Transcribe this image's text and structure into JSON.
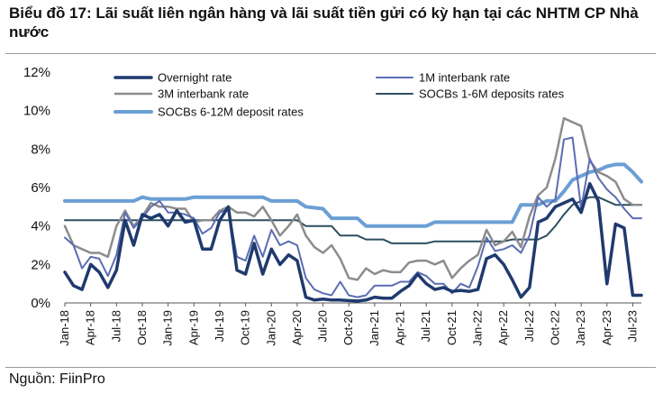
{
  "title": "Biểu đồ 17: Lãi suất liên ngân hàng và lãi suất tiền gửi có kỳ hạn tại các NHTM CP Nhà nước",
  "source": "Nguồn: FiinPro",
  "chart_data": {
    "type": "line",
    "title": "Biểu đồ 17: Lãi suất liên ngân hàng và lãi suất tiền gửi có kỳ hạn tại các NHTM CP Nhà nước",
    "xlabel": "",
    "ylabel": "",
    "ylim": [
      0,
      12
    ],
    "yticks": [
      "0%",
      "2%",
      "4%",
      "6%",
      "8%",
      "10%",
      "12%"
    ],
    "x_start": "Jan-18",
    "x_end": "Jul-23",
    "xticks": [
      "Jan-18",
      "Apr-18",
      "Jul-18",
      "Oct-18",
      "Jan-19",
      "Apr-19",
      "Jul-19",
      "Oct-19",
      "Jan-20",
      "Apr-20",
      "Jul-20",
      "Oct-20",
      "Jan-21",
      "Apr-21",
      "Jul-21",
      "Oct-21",
      "Jan-22",
      "Apr-22",
      "Jul-22",
      "Oct-22",
      "Jan-23",
      "Apr-23",
      "Jul-23"
    ],
    "grid": false,
    "legend_position": "top",
    "series": [
      {
        "name": "Overnight rate",
        "color": "#1f3a6e",
        "width": 3.5,
        "values": [
          [
            "Jan-18",
            1.6
          ],
          [
            "Feb-18",
            0.9
          ],
          [
            "Mar-18",
            0.7
          ],
          [
            "Apr-18",
            2.0
          ],
          [
            "May-18",
            1.6
          ],
          [
            "Jun-18",
            0.8
          ],
          [
            "Jul-18",
            1.7
          ],
          [
            "Aug-18",
            4.3
          ],
          [
            "Sep-18",
            3.0
          ],
          [
            "Oct-18",
            4.6
          ],
          [
            "Nov-18",
            4.4
          ],
          [
            "Dec-18",
            4.6
          ],
          [
            "Jan-19",
            4.0
          ],
          [
            "Feb-19",
            4.8
          ],
          [
            "Mar-19",
            4.2
          ],
          [
            "Apr-19",
            4.3
          ],
          [
            "May-19",
            2.8
          ],
          [
            "Jun-19",
            2.8
          ],
          [
            "Jul-19",
            4.3
          ],
          [
            "Aug-19",
            5.0
          ],
          [
            "Sep-19",
            1.7
          ],
          [
            "Oct-19",
            1.5
          ],
          [
            "Nov-19",
            3.1
          ],
          [
            "Dec-19",
            1.5
          ],
          [
            "Jan-20",
            2.8
          ],
          [
            "Feb-20",
            2.0
          ],
          [
            "Mar-20",
            2.5
          ],
          [
            "Apr-20",
            2.2
          ],
          [
            "May-20",
            0.3
          ],
          [
            "Jun-20",
            0.15
          ],
          [
            "Jul-20",
            0.2
          ],
          [
            "Aug-20",
            0.15
          ],
          [
            "Sep-20",
            0.15
          ],
          [
            "Oct-20",
            0.12
          ],
          [
            "Nov-20",
            0.1
          ],
          [
            "Dec-20",
            0.15
          ],
          [
            "Jan-21",
            0.3
          ],
          [
            "Feb-21",
            0.25
          ],
          [
            "Mar-21",
            0.25
          ],
          [
            "Apr-21",
            0.6
          ],
          [
            "May-21",
            0.9
          ],
          [
            "Jun-21",
            1.5
          ],
          [
            "Jul-21",
            1.0
          ],
          [
            "Aug-21",
            0.7
          ],
          [
            "Sep-21",
            0.8
          ],
          [
            "Oct-21",
            0.6
          ],
          [
            "Nov-21",
            0.65
          ],
          [
            "Dec-21",
            0.6
          ],
          [
            "Jan-22",
            0.7
          ],
          [
            "Feb-22",
            2.3
          ],
          [
            "Mar-22",
            2.5
          ],
          [
            "Apr-22",
            2.0
          ],
          [
            "May-22",
            1.2
          ],
          [
            "Jun-22",
            0.3
          ],
          [
            "Jul-22",
            0.8
          ],
          [
            "Aug-22",
            4.2
          ],
          [
            "Sep-22",
            4.4
          ],
          [
            "Oct-22",
            5.0
          ],
          [
            "Nov-22",
            5.2
          ],
          [
            "Dec-22",
            5.4
          ],
          [
            "Jan-23",
            4.7
          ],
          [
            "Feb-23",
            6.2
          ],
          [
            "Mar-23",
            5.3
          ],
          [
            "Apr-23",
            1.0
          ],
          [
            "May-23",
            4.1
          ],
          [
            "Jun-23",
            3.9
          ],
          [
            "Jul-23",
            0.4
          ],
          [
            "Aug-23",
            0.4
          ]
        ]
      },
      {
        "name": "1M interbank rate",
        "color": "#5b6db2",
        "width": 2,
        "values": [
          [
            "Jan-18",
            3.4
          ],
          [
            "Feb-18",
            3.0
          ],
          [
            "Mar-18",
            1.8
          ],
          [
            "Apr-18",
            2.4
          ],
          [
            "May-18",
            2.3
          ],
          [
            "Jun-18",
            1.4
          ],
          [
            "Jul-18",
            2.5
          ],
          [
            "Aug-18",
            4.7
          ],
          [
            "Sep-18",
            3.9
          ],
          [
            "Oct-18",
            4.4
          ],
          [
            "Nov-18",
            5.0
          ],
          [
            "Dec-18",
            5.3
          ],
          [
            "Jan-19",
            4.7
          ],
          [
            "Feb-19",
            4.7
          ],
          [
            "Mar-19",
            4.6
          ],
          [
            "Apr-19",
            4.4
          ],
          [
            "May-19",
            3.6
          ],
          [
            "Jun-19",
            3.9
          ],
          [
            "Jul-19",
            4.7
          ],
          [
            "Aug-19",
            4.9
          ],
          [
            "Sep-19",
            2.4
          ],
          [
            "Oct-19",
            2.2
          ],
          [
            "Nov-19",
            3.5
          ],
          [
            "Dec-19",
            2.4
          ],
          [
            "Jan-20",
            3.8
          ],
          [
            "Feb-20",
            3.0
          ],
          [
            "Mar-20",
            3.2
          ],
          [
            "Apr-20",
            3.0
          ],
          [
            "May-20",
            1.3
          ],
          [
            "Jun-20",
            0.7
          ],
          [
            "Jul-20",
            0.5
          ],
          [
            "Aug-20",
            0.4
          ],
          [
            "Sep-20",
            1.1
          ],
          [
            "Oct-20",
            0.4
          ],
          [
            "Nov-20",
            0.3
          ],
          [
            "Dec-20",
            0.4
          ],
          [
            "Jan-21",
            0.9
          ],
          [
            "Feb-21",
            0.9
          ],
          [
            "Mar-21",
            0.9
          ],
          [
            "Apr-21",
            1.1
          ],
          [
            "May-21",
            1.1
          ],
          [
            "Jun-21",
            1.6
          ],
          [
            "Jul-21",
            1.4
          ],
          [
            "Aug-21",
            1.0
          ],
          [
            "Sep-21",
            1.0
          ],
          [
            "Oct-21",
            0.5
          ],
          [
            "Nov-21",
            1.0
          ],
          [
            "Dec-21",
            0.8
          ],
          [
            "Jan-22",
            1.9
          ],
          [
            "Feb-22",
            3.4
          ],
          [
            "Mar-22",
            2.7
          ],
          [
            "Apr-22",
            2.8
          ],
          [
            "May-22",
            3.0
          ],
          [
            "Jun-22",
            2.6
          ],
          [
            "Jul-22",
            3.5
          ],
          [
            "Aug-22",
            5.5
          ],
          [
            "Sep-22",
            5.0
          ],
          [
            "Oct-22",
            5.4
          ],
          [
            "Nov-22",
            8.5
          ],
          [
            "Dec-22",
            8.6
          ],
          [
            "Jan-23",
            4.9
          ],
          [
            "Feb-23",
            7.5
          ],
          [
            "Mar-23",
            6.5
          ],
          [
            "Apr-23",
            5.9
          ],
          [
            "May-23",
            5.5
          ],
          [
            "Jun-23",
            4.9
          ],
          [
            "Jul-23",
            4.4
          ],
          [
            "Aug-23",
            4.4
          ]
        ]
      },
      {
        "name": "3M interbank rate",
        "color": "#8c8c8c",
        "width": 2.5,
        "values": [
          [
            "Jan-18",
            4.0
          ],
          [
            "Feb-18",
            3.0
          ],
          [
            "Mar-18",
            2.8
          ],
          [
            "Apr-18",
            2.6
          ],
          [
            "May-18",
            2.6
          ],
          [
            "Jun-18",
            2.4
          ],
          [
            "Jul-18",
            4.0
          ],
          [
            "Aug-18",
            4.8
          ],
          [
            "Sep-18",
            4.0
          ],
          [
            "Oct-18",
            4.5
          ],
          [
            "Nov-18",
            5.2
          ],
          [
            "Dec-18",
            5.0
          ],
          [
            "Jan-19",
            5.0
          ],
          [
            "Feb-19",
            4.9
          ],
          [
            "Mar-19",
            4.9
          ],
          [
            "Apr-19",
            4.2
          ],
          [
            "May-19",
            4.3
          ],
          [
            "Jun-19",
            4.3
          ],
          [
            "Jul-19",
            4.8
          ],
          [
            "Aug-19",
            5.0
          ],
          [
            "Sep-19",
            4.7
          ],
          [
            "Oct-19",
            4.7
          ],
          [
            "Nov-19",
            4.5
          ],
          [
            "Dec-19",
            5.0
          ],
          [
            "Jan-20",
            4.3
          ],
          [
            "Feb-20",
            3.5
          ],
          [
            "Mar-20",
            4.0
          ],
          [
            "Apr-20",
            4.6
          ],
          [
            "May-20",
            3.5
          ],
          [
            "Jun-20",
            2.9
          ],
          [
            "Jul-20",
            2.6
          ],
          [
            "Aug-20",
            3.0
          ],
          [
            "Sep-20",
            2.3
          ],
          [
            "Oct-20",
            1.3
          ],
          [
            "Nov-20",
            1.2
          ],
          [
            "Dec-20",
            1.8
          ],
          [
            "Jan-21",
            1.5
          ],
          [
            "Feb-21",
            1.7
          ],
          [
            "Mar-21",
            1.6
          ],
          [
            "Apr-21",
            1.6
          ],
          [
            "May-21",
            2.1
          ],
          [
            "Jun-21",
            2.2
          ],
          [
            "Jul-21",
            2.2
          ],
          [
            "Aug-21",
            2.0
          ],
          [
            "Sep-21",
            2.2
          ],
          [
            "Oct-21",
            1.3
          ],
          [
            "Nov-21",
            1.8
          ],
          [
            "Dec-21",
            2.2
          ],
          [
            "Jan-22",
            2.5
          ],
          [
            "Feb-22",
            3.8
          ],
          [
            "Mar-22",
            3.0
          ],
          [
            "Apr-22",
            3.2
          ],
          [
            "May-22",
            3.7
          ],
          [
            "Jun-22",
            2.9
          ],
          [
            "Jul-22",
            4.5
          ],
          [
            "Aug-22",
            5.6
          ],
          [
            "Sep-22",
            6.0
          ],
          [
            "Oct-22",
            7.5
          ],
          [
            "Nov-22",
            9.6
          ],
          [
            "Dec-22",
            9.4
          ],
          [
            "Jan-23",
            9.2
          ],
          [
            "Feb-23",
            7.4
          ],
          [
            "Mar-23",
            6.8
          ],
          [
            "Apr-23",
            6.6
          ],
          [
            "May-23",
            6.3
          ],
          [
            "Jun-23",
            5.4
          ],
          [
            "Jul-23",
            5.1
          ],
          [
            "Aug-23",
            5.1
          ]
        ]
      },
      {
        "name": "SOCBs 1-6M deposits rates",
        "color": "#2d4f61",
        "width": 2,
        "values": [
          [
            "Jan-18",
            4.3
          ],
          [
            "Dec-19",
            4.3
          ],
          [
            "Jan-20",
            4.3
          ],
          [
            "Apr-20",
            4.3
          ],
          [
            "May-20",
            4.0
          ],
          [
            "Aug-20",
            4.0
          ],
          [
            "Sep-20",
            3.5
          ],
          [
            "Nov-20",
            3.5
          ],
          [
            "Dec-20",
            3.3
          ],
          [
            "Feb-21",
            3.3
          ],
          [
            "Mar-21",
            3.1
          ],
          [
            "Jun-21",
            3.1
          ],
          [
            "Jul-21",
            3.1
          ],
          [
            "Aug-21",
            3.2
          ],
          [
            "Apr-22",
            3.2
          ],
          [
            "May-22",
            3.3
          ],
          [
            "Aug-22",
            3.3
          ],
          [
            "Sep-22",
            3.5
          ],
          [
            "Oct-22",
            4.0
          ],
          [
            "Nov-22",
            4.6
          ],
          [
            "Dec-22",
            5.1
          ],
          [
            "Jan-23",
            5.3
          ],
          [
            "Feb-23",
            5.5
          ],
          [
            "Mar-23",
            5.5
          ],
          [
            "Apr-23",
            5.3
          ],
          [
            "May-23",
            5.1
          ],
          [
            "Jun-23",
            5.1
          ],
          [
            "Aug-23",
            5.1
          ]
        ]
      },
      {
        "name": "SOCBs 6-12M deposit rates",
        "color": "#6b9fd4",
        "width": 4,
        "values": [
          [
            "Jan-18",
            5.3
          ],
          [
            "Sep-18",
            5.3
          ],
          [
            "Oct-18",
            5.5
          ],
          [
            "Nov-18",
            5.4
          ],
          [
            "Mar-19",
            5.4
          ],
          [
            "Apr-19",
            5.5
          ],
          [
            "Dec-19",
            5.5
          ],
          [
            "Jan-20",
            5.3
          ],
          [
            "Apr-20",
            5.3
          ],
          [
            "May-20",
            5.0
          ],
          [
            "Jul-20",
            4.9
          ],
          [
            "Aug-20",
            4.4
          ],
          [
            "Nov-20",
            4.4
          ],
          [
            "Dec-20",
            4.0
          ],
          [
            "Jul-21",
            4.0
          ],
          [
            "Aug-21",
            4.2
          ],
          [
            "Mar-22",
            4.2
          ],
          [
            "May-22",
            4.2
          ],
          [
            "Jun-22",
            5.1
          ],
          [
            "Aug-22",
            5.1
          ],
          [
            "Sep-22",
            5.3
          ],
          [
            "Oct-22",
            5.3
          ],
          [
            "Nov-22",
            5.8
          ],
          [
            "Dec-22",
            6.4
          ],
          [
            "Jan-23",
            6.6
          ],
          [
            "Feb-23",
            6.8
          ],
          [
            "Mar-23",
            6.9
          ],
          [
            "Apr-23",
            7.1
          ],
          [
            "May-23",
            7.2
          ],
          [
            "Jun-23",
            7.2
          ],
          [
            "Jul-23",
            6.8
          ],
          [
            "Aug-23",
            6.3
          ]
        ]
      }
    ]
  }
}
